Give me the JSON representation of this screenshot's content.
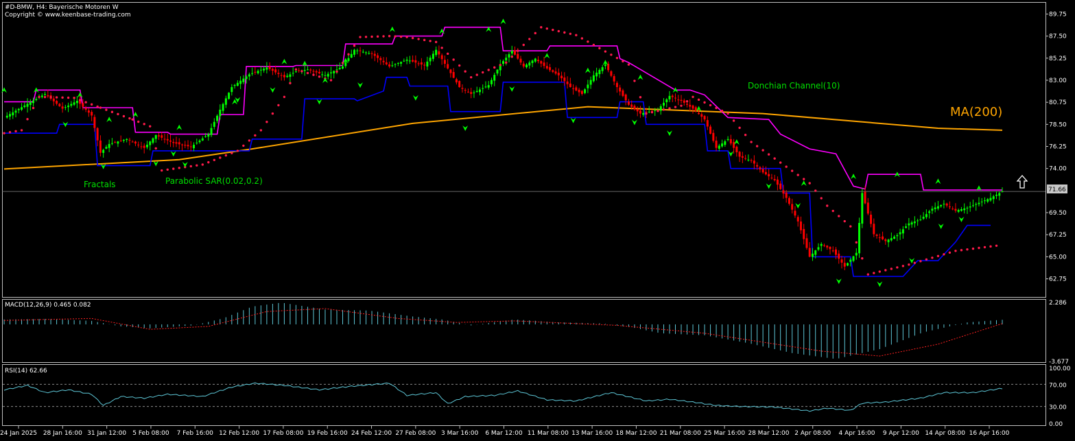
{
  "header": {
    "symbol_line": "#D-BMW, H4:  Bayerische Motoren W",
    "copyright": "Copyright © www.keenbase-trading.com"
  },
  "colors": {
    "background": "#000000",
    "frame": "#c0c0c0",
    "bull": "#00ff00",
    "bear": "#ff0000",
    "donchian_upper": "#ff00ff",
    "donchian_lower": "#0000ff",
    "sar": "#ff1a4a",
    "ma": "#ffa500",
    "fractal": "#00ff00",
    "macd_hist": "#5ec8d8",
    "macd_signal": "#ff2020",
    "rsi": "#5ec8d8",
    "axis_text": "#ffffff",
    "price_label_bg": "#c8c8c8"
  },
  "labels": {
    "fractals": "Fractals",
    "sar": "Parabolic SAR(0.02,0.2)",
    "donchian": "Donchian Channel(10)",
    "ma": "MA(200)",
    "macd": "MACD(12,26,9) 0.465 0.082",
    "rsi": "RSI(14) 62.66",
    "current_price": "71.66",
    "arrow_icon": "up-arrow-icon"
  },
  "chart_data": [
    {
      "type": "candlestick",
      "title": "#D-BMW, H4:  Bayerische Motoren W",
      "ylim": [
        60.9,
        90.9
      ],
      "y_ticks": [
        "89.75",
        "87.50",
        "85.25",
        "83.00",
        "80.75",
        "78.50",
        "76.25",
        "74.00",
        "71.66",
        "69.50",
        "67.25",
        "65.00",
        "62.75"
      ],
      "x_ticks": [
        "24 Jan 2025",
        "28 Jan 16:00",
        "31 Jan 12:00",
        "5 Feb 08:00",
        "7 Feb 16:00",
        "12 Feb 12:00",
        "17 Feb 08:00",
        "19 Feb 16:00",
        "24 Feb 12:00",
        "27 Feb 08:00",
        "3 Mar 16:00",
        "6 Mar 12:00",
        "11 Mar 08:00",
        "13 Mar 16:00",
        "18 Mar 12:00",
        "21 Mar 08:00",
        "25 Mar 16:00",
        "28 Mar 12:00",
        "2 Apr 08:00",
        "4 Apr 16:00",
        "9 Apr 12:00",
        "14 Apr 08:00",
        "16 Apr 16:00"
      ],
      "close_path": [
        [
          0,
          79.2
        ],
        [
          8,
          80.6
        ],
        [
          14,
          81.6
        ],
        [
          20,
          80.1
        ],
        [
          25,
          80.9
        ],
        [
          30,
          79.4
        ],
        [
          33,
          75.6
        ],
        [
          36,
          76.5
        ],
        [
          42,
          77.0
        ],
        [
          48,
          76.1
        ],
        [
          52,
          77.4
        ],
        [
          58,
          76.6
        ],
        [
          64,
          76.2
        ],
        [
          70,
          77.5
        ],
        [
          74,
          80.0
        ],
        [
          78,
          82.3
        ],
        [
          84,
          83.6
        ],
        [
          90,
          84.3
        ],
        [
          96,
          83.3
        ],
        [
          100,
          83.9
        ],
        [
          104,
          84.1
        ],
        [
          110,
          83.5
        ],
        [
          116,
          84.4
        ],
        [
          120,
          86.1
        ],
        [
          126,
          85.7
        ],
        [
          132,
          84.4
        ],
        [
          138,
          85.1
        ],
        [
          144,
          84.5
        ],
        [
          148,
          86.1
        ],
        [
          152,
          84.2
        ],
        [
          156,
          82.3
        ],
        [
          160,
          81.6
        ],
        [
          166,
          82.5
        ],
        [
          170,
          84.6
        ],
        [
          174,
          86.0
        ],
        [
          178,
          84.4
        ],
        [
          182,
          85.2
        ],
        [
          186,
          84.2
        ],
        [
          190,
          83.5
        ],
        [
          194,
          82.3
        ],
        [
          198,
          81.6
        ],
        [
          202,
          83.5
        ],
        [
          206,
          84.6
        ],
        [
          210,
          82.3
        ],
        [
          214,
          80.5
        ],
        [
          218,
          79.6
        ],
        [
          224,
          80.0
        ],
        [
          228,
          81.4
        ],
        [
          232,
          80.9
        ],
        [
          236,
          80.1
        ],
        [
          240,
          79.0
        ],
        [
          244,
          76.1
        ],
        [
          248,
          77.0
        ],
        [
          252,
          75.2
        ],
        [
          256,
          74.8
        ],
        [
          260,
          73.6
        ],
        [
          264,
          72.8
        ],
        [
          268,
          71.0
        ],
        [
          272,
          68.6
        ],
        [
          276,
          65.0
        ],
        [
          280,
          66.3
        ],
        [
          284,
          65.6
        ],
        [
          288,
          64.0
        ],
        [
          292,
          65.4
        ],
        [
          294,
          71.5
        ],
        [
          298,
          67.3
        ],
        [
          302,
          66.6
        ],
        [
          306,
          67.2
        ],
        [
          310,
          68.4
        ],
        [
          314,
          68.8
        ],
        [
          318,
          69.9
        ],
        [
          322,
          70.4
        ],
        [
          326,
          69.7
        ],
        [
          330,
          70.0
        ],
        [
          334,
          70.5
        ],
        [
          338,
          71.0
        ],
        [
          342,
          71.66
        ]
      ],
      "ma200_path": [
        [
          0,
          73.95
        ],
        [
          60,
          74.9
        ],
        [
          85,
          76.0
        ],
        [
          140,
          78.6
        ],
        [
          200,
          80.3
        ],
        [
          260,
          79.6
        ],
        [
          320,
          78.1
        ],
        [
          342,
          77.9
        ]
      ],
      "donchian_upper_path": [
        [
          0,
          80.8
        ],
        [
          10,
          80.8
        ],
        [
          11,
          82.0
        ],
        [
          26,
          82.0
        ],
        [
          27,
          80.2
        ],
        [
          44,
          80.2
        ],
        [
          45,
          77.7
        ],
        [
          56,
          77.7
        ],
        [
          57,
          77.5
        ],
        [
          73,
          77.5
        ],
        [
          74,
          79.5
        ],
        [
          82,
          79.5
        ],
        [
          83,
          84.4
        ],
        [
          99,
          84.4
        ],
        [
          100,
          84.5
        ],
        [
          116,
          84.5
        ],
        [
          117,
          86.7
        ],
        [
          133,
          86.7
        ],
        [
          134,
          87.5
        ],
        [
          150,
          87.5
        ],
        [
          151,
          88.4
        ],
        [
          170,
          88.4
        ],
        [
          171,
          86.0
        ],
        [
          186,
          86.0
        ],
        [
          187,
          86.5
        ],
        [
          210,
          86.5
        ],
        [
          211,
          85.2
        ],
        [
          214,
          84.8
        ],
        [
          230,
          82.0
        ],
        [
          235,
          82.0
        ],
        [
          240,
          81.5
        ],
        [
          248,
          79.2
        ],
        [
          262,
          79.0
        ],
        [
          266,
          77.5
        ],
        [
          276,
          76.0
        ],
        [
          285,
          75.5
        ],
        [
          291,
          72.2
        ],
        [
          295,
          71.9
        ],
        [
          296,
          73.4
        ],
        [
          314,
          73.4
        ],
        [
          315,
          71.8
        ],
        [
          338,
          71.8
        ],
        [
          342,
          71.8
        ]
      ],
      "donchian_lower_path": [
        [
          0,
          77.6
        ],
        [
          18,
          77.6
        ],
        [
          19,
          78.5
        ],
        [
          31,
          78.5
        ],
        [
          32,
          74.3
        ],
        [
          50,
          74.3
        ],
        [
          51,
          75.8
        ],
        [
          60,
          75.8
        ],
        [
          61,
          75.8
        ],
        [
          84,
          75.8
        ],
        [
          85,
          77.0
        ],
        [
          102,
          77.0
        ],
        [
          103,
          81.1
        ],
        [
          120,
          81.1
        ],
        [
          121,
          80.9
        ],
        [
          130,
          81.9
        ],
        [
          131,
          83.3
        ],
        [
          138,
          83.3
        ],
        [
          139,
          82.4
        ],
        [
          152,
          82.4
        ],
        [
          153,
          79.8
        ],
        [
          170,
          79.8
        ],
        [
          171,
          82.8
        ],
        [
          192,
          82.8
        ],
        [
          193,
          79.2
        ],
        [
          210,
          79.2
        ],
        [
          211,
          80.8
        ],
        [
          219,
          80.8
        ],
        [
          220,
          78.5
        ],
        [
          240,
          78.5
        ],
        [
          241,
          75.8
        ],
        [
          248,
          75.8
        ],
        [
          249,
          74.0
        ],
        [
          266,
          74.0
        ],
        [
          267,
          71.5
        ],
        [
          276,
          71.5
        ],
        [
          277,
          65.0
        ],
        [
          290,
          65.0
        ],
        [
          291,
          63.0
        ],
        [
          308,
          63.0
        ],
        [
          313,
          64.6
        ],
        [
          320,
          64.6
        ],
        [
          326,
          66.5
        ],
        [
          330,
          68.2
        ],
        [
          338,
          68.2
        ]
      ],
      "sar_points": [
        [
          0,
          77.6
        ],
        [
          6,
          77.9
        ],
        [
          12,
          81.3
        ],
        [
          24,
          81.2
        ],
        [
          33,
          80.2
        ],
        [
          44,
          79.0
        ],
        [
          50,
          78.3
        ],
        [
          54,
          73.8
        ],
        [
          68,
          74.4
        ],
        [
          80,
          75.8
        ],
        [
          88,
          77.9
        ],
        [
          96,
          81.3
        ],
        [
          100,
          84.1
        ],
        [
          112,
          83.0
        ],
        [
          122,
          87.4
        ],
        [
          132,
          87.5
        ],
        [
          138,
          87.4
        ],
        [
          148,
          86.9
        ],
        [
          160,
          83.3
        ],
        [
          172,
          84.8
        ],
        [
          184,
          88.4
        ],
        [
          196,
          87.6
        ],
        [
          214,
          84.6
        ],
        [
          220,
          79.6
        ],
        [
          232,
          80.4
        ],
        [
          236,
          81.3
        ],
        [
          248,
          79.6
        ],
        [
          256,
          76.7
        ],
        [
          266,
          74.6
        ],
        [
          276,
          72.5
        ],
        [
          282,
          70.2
        ],
        [
          290,
          68.1
        ],
        [
          296,
          63.2
        ],
        [
          310,
          64.2
        ],
        [
          326,
          65.6
        ],
        [
          342,
          66.2
        ]
      ],
      "fractals_up": [
        [
          0,
          82.0
        ],
        [
          11,
          82.0
        ],
        [
          26,
          81.5
        ],
        [
          36,
          79.0
        ],
        [
          45,
          79.5
        ],
        [
          60,
          78.2
        ],
        [
          79,
          80.8
        ],
        [
          96,
          84.9
        ],
        [
          103,
          84.7
        ],
        [
          110,
          83.0
        ],
        [
          117,
          85.0
        ],
        [
          133,
          88.2
        ],
        [
          150,
          88.0
        ],
        [
          166,
          88.2
        ],
        [
          171,
          89.0
        ],
        [
          186,
          85.5
        ],
        [
          200,
          84.0
        ],
        [
          206,
          84.8
        ],
        [
          218,
          83.3
        ],
        [
          230,
          82.0
        ],
        [
          238,
          80.1
        ],
        [
          251,
          76.7
        ],
        [
          274,
          72.5
        ],
        [
          291,
          73.2
        ],
        [
          306,
          73.4
        ],
        [
          320,
          72.7
        ],
        [
          334,
          72.0
        ]
      ],
      "fractals_down": [
        [
          21,
          78.5
        ],
        [
          34,
          74.2
        ],
        [
          52,
          74.5
        ],
        [
          58,
          75.5
        ],
        [
          62,
          74.4
        ],
        [
          80,
          81.0
        ],
        [
          92,
          82.0
        ],
        [
          108,
          80.8
        ],
        [
          122,
          82.5
        ],
        [
          141,
          81.2
        ],
        [
          158,
          78.1
        ],
        [
          174,
          82.1
        ],
        [
          195,
          78.9
        ],
        [
          216,
          78.7
        ],
        [
          228,
          77.6
        ],
        [
          249,
          75.5
        ],
        [
          262,
          72.2
        ],
        [
          272,
          70.2
        ],
        [
          286,
          62.5
        ],
        [
          300,
          62.2
        ],
        [
          311,
          64.6
        ],
        [
          321,
          68.1
        ],
        [
          328,
          68.8
        ]
      ]
    },
    {
      "type": "histogram",
      "title": "MACD(12,26,9) 0.465 0.082",
      "ylim": [
        -3.677,
        2.286
      ],
      "y_ticks": [
        "2.286",
        "-3.677"
      ],
      "hist_path": [
        [
          0,
          0.5
        ],
        [
          15,
          0.55
        ],
        [
          30,
          0.35
        ],
        [
          40,
          -0.2
        ],
        [
          50,
          -0.4
        ],
        [
          65,
          -0.1
        ],
        [
          75,
          0.6
        ],
        [
          85,
          1.8
        ],
        [
          95,
          2.2
        ],
        [
          110,
          1.5
        ],
        [
          125,
          1.4
        ],
        [
          140,
          0.8
        ],
        [
          150,
          0.5
        ],
        [
          160,
          -0.1
        ],
        [
          175,
          0.5
        ],
        [
          190,
          0.2
        ],
        [
          205,
          0.1
        ],
        [
          215,
          -0.3
        ],
        [
          225,
          -0.9
        ],
        [
          240,
          -1.1
        ],
        [
          255,
          -1.9
        ],
        [
          270,
          -2.9
        ],
        [
          285,
          -3.5
        ],
        [
          300,
          -2.5
        ],
        [
          315,
          -0.8
        ],
        [
          330,
          0.2
        ],
        [
          342,
          0.47
        ]
      ],
      "signal_path": [
        [
          0,
          0.4
        ],
        [
          30,
          0.6
        ],
        [
          50,
          -0.5
        ],
        [
          70,
          -0.2
        ],
        [
          90,
          1.3
        ],
        [
          110,
          1.6
        ],
        [
          135,
          0.6
        ],
        [
          155,
          0.2
        ],
        [
          175,
          0.35
        ],
        [
          210,
          -0.1
        ],
        [
          240,
          -0.9
        ],
        [
          280,
          -2.7
        ],
        [
          300,
          -3.2
        ],
        [
          320,
          -2.0
        ],
        [
          342,
          0.08
        ]
      ]
    },
    {
      "type": "line",
      "title": "RSI(14) 62.66",
      "ylim": [
        0,
        100
      ],
      "y_ticks": [
        "100.00",
        "70.00",
        "30.00",
        "0.00"
      ],
      "levels": [
        70,
        30
      ],
      "rsi_path": [
        [
          0,
          60
        ],
        [
          8,
          68
        ],
        [
          14,
          55
        ],
        [
          22,
          60
        ],
        [
          30,
          52
        ],
        [
          34,
          32
        ],
        [
          40,
          48
        ],
        [
          48,
          45
        ],
        [
          56,
          52
        ],
        [
          68,
          48
        ],
        [
          78,
          65
        ],
        [
          86,
          72
        ],
        [
          96,
          68
        ],
        [
          108,
          60
        ],
        [
          118,
          66
        ],
        [
          132,
          72
        ],
        [
          138,
          50
        ],
        [
          148,
          55
        ],
        [
          152,
          35
        ],
        [
          158,
          48
        ],
        [
          168,
          50
        ],
        [
          176,
          58
        ],
        [
          186,
          42
        ],
        [
          196,
          40
        ],
        [
          208,
          55
        ],
        [
          220,
          40
        ],
        [
          228,
          43
        ],
        [
          236,
          38
        ],
        [
          244,
          32
        ],
        [
          252,
          30
        ],
        [
          264,
          29
        ],
        [
          276,
          22
        ],
        [
          282,
          27
        ],
        [
          290,
          23
        ],
        [
          294,
          36
        ],
        [
          302,
          38
        ],
        [
          314,
          45
        ],
        [
          322,
          55
        ],
        [
          332,
          55
        ],
        [
          342,
          62.66
        ]
      ]
    }
  ]
}
